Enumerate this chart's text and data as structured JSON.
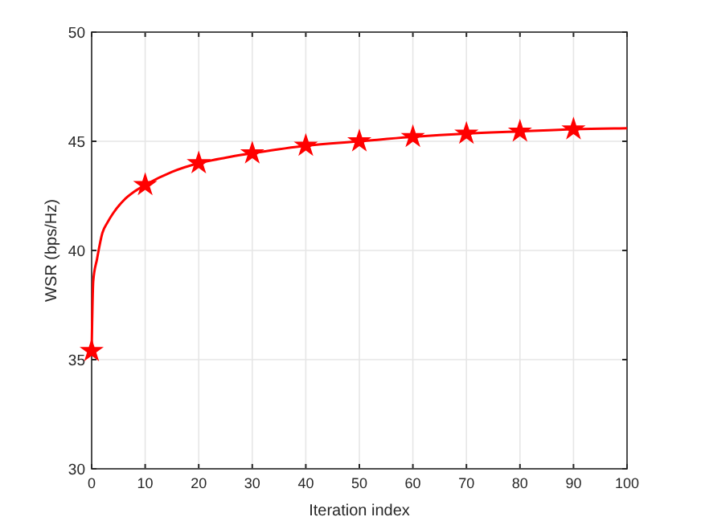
{
  "chart_data": {
    "type": "line",
    "xlabel": "Iteration index",
    "ylabel": "WSR (bps/Hz)",
    "xlim": [
      0,
      100
    ],
    "ylim": [
      30,
      50
    ],
    "xticks": [
      0,
      10,
      20,
      30,
      40,
      50,
      60,
      70,
      80,
      90,
      100
    ],
    "yticks": [
      30,
      35,
      40,
      45,
      50
    ],
    "grid": true,
    "line_style": "solid",
    "series": [
      {
        "color": "#ff0000",
        "marker": "none",
        "x": [
          0,
          0.3,
          1,
          2,
          3,
          4,
          6,
          8,
          10,
          15,
          20,
          25,
          30,
          40,
          50,
          60,
          70,
          80,
          90,
          100
        ],
        "values": [
          35.4,
          38.6,
          39.6,
          40.8,
          41.3,
          41.7,
          42.3,
          42.7,
          43.0,
          43.6,
          44.0,
          44.25,
          44.45,
          44.8,
          45.0,
          45.2,
          45.35,
          45.45,
          45.55,
          45.6
        ]
      },
      {
        "type": "scatter",
        "color": "#ff0000",
        "marker": "star",
        "x": [
          0,
          10,
          20,
          30,
          40,
          50,
          60,
          70,
          80,
          90
        ],
        "values": [
          35.4,
          43.0,
          44.0,
          44.45,
          44.8,
          45.0,
          45.2,
          45.35,
          45.45,
          45.55
        ]
      }
    ]
  }
}
